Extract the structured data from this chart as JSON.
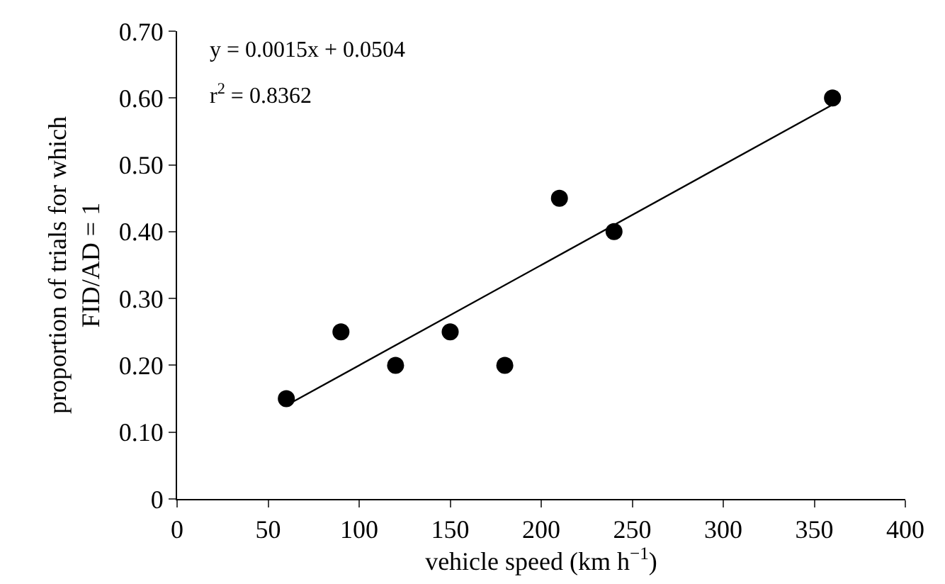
{
  "chart_data": {
    "type": "scatter",
    "xlabel": "vehicle speed (km h$^{−1}$)",
    "ylabel": "proportion of trials for which\nFID/AD = 1",
    "x": [
      60,
      90,
      120,
      150,
      180,
      210,
      240,
      360
    ],
    "series": [
      {
        "color": "#000000",
        "marker": "circle",
        "values": [
          0.15,
          0.25,
          0.2,
          0.25,
          0.2,
          0.45,
          0.4,
          0.6
        ]
      },
      {
        "type": "line",
        "color": "#000000",
        "marker": "none",
        "x": [
          60,
          360
        ],
        "values": [
          0.14,
          0.59
        ]
      }
    ],
    "annotations": [
      "y = 0.0015x + 0.0504",
      "r$^{2}$ = 0.8362"
    ],
    "xlim": [
      0,
      400
    ],
    "xticks": [
      0,
      50,
      100,
      150,
      200,
      250,
      300,
      350,
      400
    ],
    "ylim": [
      0,
      0.7
    ],
    "yticks": [
      0,
      {
        "value": 0.1,
        "label": "0.10"
      },
      {
        "value": 0.2,
        "label": "0.20"
      },
      {
        "value": 0.3,
        "label": "0.30"
      },
      {
        "value": 0.4,
        "label": "0.40"
      },
      {
        "value": 0.5,
        "label": "0.50"
      },
      {
        "value": 0.6,
        "label": "0.60"
      },
      {
        "value": 0.7,
        "label": "0.70"
      }
    ],
    "grid": false
  }
}
